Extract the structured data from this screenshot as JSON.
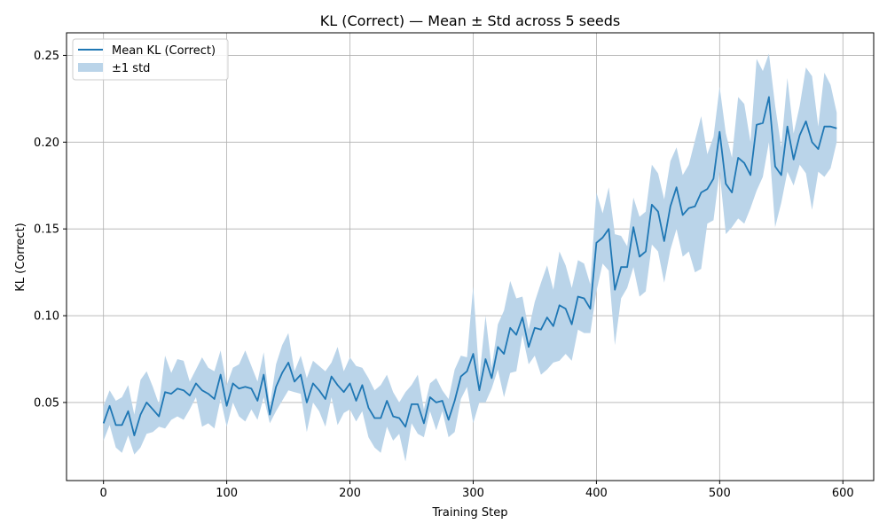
{
  "chart_data": {
    "type": "line",
    "title": "KL (Correct) — Mean ± Std across 5 seeds",
    "xlabel": "Training Step",
    "ylabel": "KL (Correct)",
    "xlim": [
      -30,
      625
    ],
    "ylim": [
      0.005,
      0.263
    ],
    "xticks": [
      0,
      100,
      200,
      300,
      400,
      500,
      600
    ],
    "xtick_labels": [
      "0",
      "100",
      "200",
      "300",
      "400",
      "500",
      "600"
    ],
    "yticks": [
      0.05,
      0.1,
      0.15,
      0.2,
      0.25
    ],
    "ytick_labels": [
      "0.05",
      "0.10",
      "0.15",
      "0.20",
      "0.25"
    ],
    "grid": true,
    "legend_position": "top-left",
    "colors": {
      "line": "#1f77b4",
      "band": "#bad4e9"
    },
    "series": [
      {
        "name": "Mean KL (Correct)",
        "kind": "line",
        "x": [
          0,
          5,
          10,
          15,
          20,
          25,
          30,
          35,
          40,
          45,
          50,
          55,
          60,
          65,
          70,
          75,
          80,
          85,
          90,
          95,
          100,
          105,
          110,
          115,
          120,
          125,
          130,
          135,
          140,
          145,
          150,
          155,
          160,
          165,
          170,
          175,
          180,
          185,
          190,
          195,
          200,
          205,
          210,
          215,
          220,
          225,
          230,
          235,
          240,
          245,
          250,
          255,
          260,
          265,
          270,
          275,
          280,
          285,
          290,
          295,
          300,
          305,
          310,
          315,
          320,
          325,
          330,
          335,
          340,
          345,
          350,
          355,
          360,
          365,
          370,
          375,
          380,
          385,
          390,
          395,
          400,
          405,
          410,
          415,
          420,
          425,
          430,
          435,
          440,
          445,
          450,
          455,
          460,
          465,
          470,
          475,
          480,
          485,
          490,
          495,
          500,
          505,
          510,
          515,
          520,
          525,
          530,
          535,
          540,
          545,
          550,
          555,
          560,
          565,
          570,
          575,
          580,
          585,
          590,
          595
        ],
        "y": [
          0.038,
          0.048,
          0.037,
          0.037,
          0.045,
          0.031,
          0.043,
          0.05,
          0.046,
          0.042,
          0.056,
          0.055,
          0.058,
          0.057,
          0.054,
          0.061,
          0.057,
          0.055,
          0.052,
          0.066,
          0.048,
          0.061,
          0.058,
          0.059,
          0.058,
          0.051,
          0.066,
          0.043,
          0.059,
          0.067,
          0.073,
          0.062,
          0.066,
          0.05,
          0.061,
          0.057,
          0.052,
          0.065,
          0.06,
          0.056,
          0.061,
          0.051,
          0.06,
          0.047,
          0.041,
          0.041,
          0.051,
          0.042,
          0.041,
          0.036,
          0.049,
          0.049,
          0.038,
          0.053,
          0.05,
          0.051,
          0.04,
          0.051,
          0.065,
          0.068,
          0.078,
          0.057,
          0.075,
          0.064,
          0.082,
          0.078,
          0.093,
          0.089,
          0.099,
          0.082,
          0.093,
          0.092,
          0.099,
          0.094,
          0.106,
          0.104,
          0.095,
          0.111,
          0.11,
          0.104,
          0.142,
          0.145,
          0.15,
          0.115,
          0.128,
          0.128,
          0.151,
          0.134,
          0.137,
          0.164,
          0.16,
          0.143,
          0.163,
          0.174,
          0.158,
          0.162,
          0.163,
          0.171,
          0.173,
          0.179,
          0.206,
          0.176,
          0.171,
          0.191,
          0.188,
          0.181,
          0.21,
          0.211,
          0.226,
          0.186,
          0.181,
          0.209,
          0.19,
          0.204,
          0.212,
          0.2,
          0.196,
          0.209,
          0.209,
          0.208
        ]
      },
      {
        "name": "±1 std",
        "kind": "band",
        "x": [
          0,
          5,
          10,
          15,
          20,
          25,
          30,
          35,
          40,
          45,
          50,
          55,
          60,
          65,
          70,
          75,
          80,
          85,
          90,
          95,
          100,
          105,
          110,
          115,
          120,
          125,
          130,
          135,
          140,
          145,
          150,
          155,
          160,
          165,
          170,
          175,
          180,
          185,
          190,
          195,
          200,
          205,
          210,
          215,
          220,
          225,
          230,
          235,
          240,
          245,
          250,
          255,
          260,
          265,
          270,
          275,
          280,
          285,
          290,
          295,
          300,
          305,
          310,
          315,
          320,
          325,
          330,
          335,
          340,
          345,
          350,
          355,
          360,
          365,
          370,
          375,
          380,
          385,
          390,
          395,
          400,
          405,
          410,
          415,
          420,
          425,
          430,
          435,
          440,
          445,
          450,
          455,
          460,
          465,
          470,
          475,
          480,
          485,
          490,
          495,
          500,
          505,
          510,
          515,
          520,
          525,
          530,
          535,
          540,
          545,
          550,
          555,
          560,
          565,
          570,
          575,
          580,
          585,
          590,
          595
        ],
        "lower": [
          0.028,
          0.037,
          0.024,
          0.021,
          0.031,
          0.02,
          0.024,
          0.032,
          0.033,
          0.036,
          0.035,
          0.04,
          0.042,
          0.04,
          0.046,
          0.053,
          0.036,
          0.038,
          0.035,
          0.052,
          0.036,
          0.05,
          0.042,
          0.039,
          0.046,
          0.04,
          0.053,
          0.038,
          0.045,
          0.051,
          0.057,
          0.056,
          0.055,
          0.033,
          0.05,
          0.045,
          0.036,
          0.053,
          0.037,
          0.044,
          0.046,
          0.039,
          0.045,
          0.03,
          0.024,
          0.021,
          0.036,
          0.028,
          0.032,
          0.016,
          0.038,
          0.032,
          0.03,
          0.045,
          0.034,
          0.045,
          0.03,
          0.033,
          0.052,
          0.059,
          0.038,
          0.05,
          0.05,
          0.058,
          0.069,
          0.053,
          0.067,
          0.068,
          0.089,
          0.072,
          0.077,
          0.066,
          0.069,
          0.073,
          0.074,
          0.078,
          0.074,
          0.092,
          0.09,
          0.09,
          0.114,
          0.13,
          0.126,
          0.083,
          0.11,
          0.116,
          0.128,
          0.111,
          0.114,
          0.141,
          0.137,
          0.119,
          0.138,
          0.15,
          0.134,
          0.137,
          0.125,
          0.127,
          0.153,
          0.155,
          0.183,
          0.147,
          0.151,
          0.156,
          0.153,
          0.162,
          0.172,
          0.18,
          0.2,
          0.151,
          0.165,
          0.183,
          0.175,
          0.187,
          0.182,
          0.161,
          0.183,
          0.18,
          0.185,
          0.2
        ]
      },
      {
        "name": "±1 std upper",
        "kind": "band-upper",
        "upper": [
          0.048,
          0.057,
          0.051,
          0.053,
          0.06,
          0.043,
          0.063,
          0.068,
          0.059,
          0.049,
          0.077,
          0.067,
          0.075,
          0.074,
          0.062,
          0.069,
          0.076,
          0.07,
          0.068,
          0.08,
          0.06,
          0.07,
          0.072,
          0.08,
          0.071,
          0.062,
          0.079,
          0.048,
          0.072,
          0.083,
          0.09,
          0.068,
          0.077,
          0.064,
          0.074,
          0.071,
          0.068,
          0.073,
          0.082,
          0.068,
          0.076,
          0.071,
          0.07,
          0.064,
          0.057,
          0.06,
          0.066,
          0.056,
          0.05,
          0.056,
          0.06,
          0.066,
          0.046,
          0.061,
          0.064,
          0.057,
          0.052,
          0.069,
          0.077,
          0.076,
          0.117,
          0.064,
          0.1,
          0.07,
          0.095,
          0.103,
          0.12,
          0.11,
          0.111,
          0.092,
          0.108,
          0.119,
          0.129,
          0.115,
          0.137,
          0.129,
          0.116,
          0.132,
          0.13,
          0.118,
          0.171,
          0.159,
          0.174,
          0.147,
          0.146,
          0.14,
          0.168,
          0.157,
          0.16,
          0.187,
          0.182,
          0.167,
          0.189,
          0.197,
          0.181,
          0.187,
          0.201,
          0.215,
          0.193,
          0.203,
          0.232,
          0.205,
          0.191,
          0.226,
          0.222,
          0.2,
          0.248,
          0.241,
          0.251,
          0.221,
          0.197,
          0.237,
          0.205,
          0.221,
          0.243,
          0.238,
          0.209,
          0.24,
          0.233,
          0.217
        ]
      }
    ]
  },
  "legend": {
    "line_label": "Mean KL (Correct)",
    "band_label": "±1 std"
  }
}
